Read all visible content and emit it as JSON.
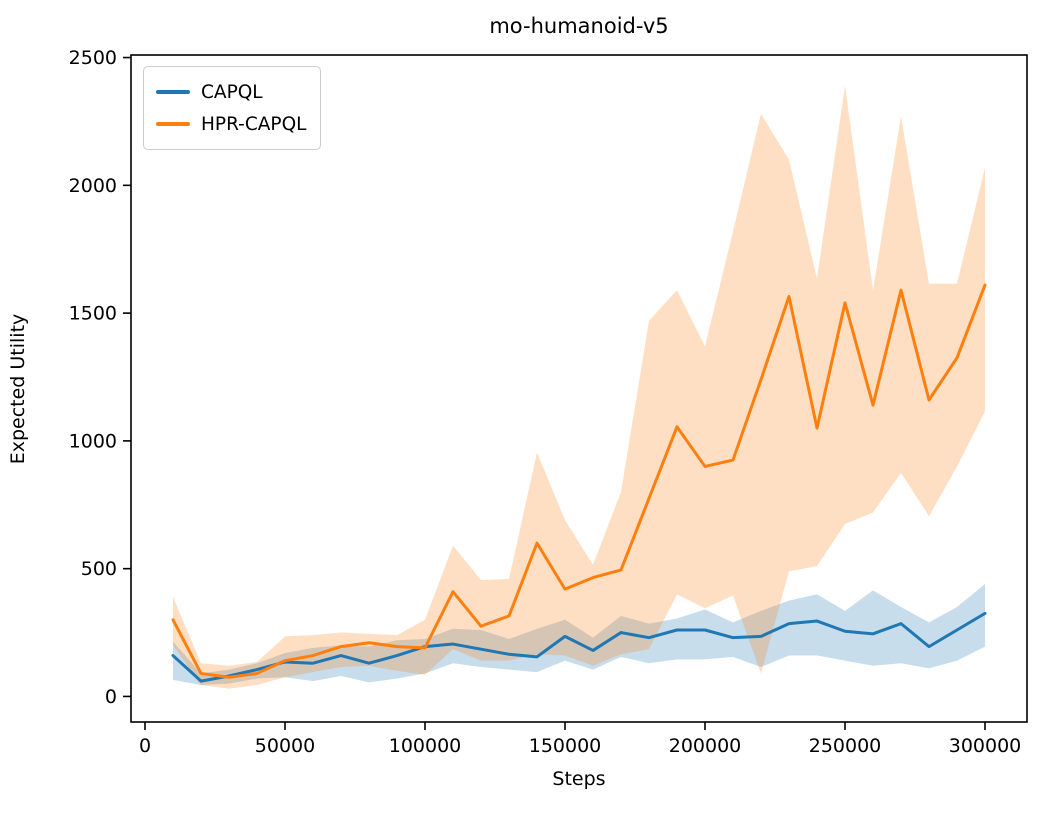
{
  "figure": {
    "title": "mo-humanoid-v5",
    "background_color": "#ffffff",
    "spine_color": "#000000"
  },
  "legend": {
    "position": "upper left",
    "entries": [
      {
        "label": "CAPQL",
        "color": "#1f77b4"
      },
      {
        "label": "HPR-CAPQL",
        "color": "#ff7f0e"
      }
    ]
  },
  "chart_data": {
    "type": "line",
    "title": "mo-humanoid-v5",
    "xlabel": "Steps",
    "ylabel": "Expected Utility",
    "grid": false,
    "legend_position": "upper left",
    "xlim": [
      -5000,
      315000
    ],
    "ylim": [
      -100,
      2510
    ],
    "xticks": [
      0,
      50000,
      100000,
      150000,
      200000,
      250000,
      300000
    ],
    "yticks": [
      0,
      500,
      1000,
      1500,
      2000,
      2500
    ],
    "band_opacity": 0.25,
    "x": [
      10000,
      20000,
      30000,
      40000,
      50000,
      60000,
      70000,
      80000,
      90000,
      100000,
      110000,
      120000,
      130000,
      140000,
      150000,
      160000,
      170000,
      180000,
      190000,
      200000,
      210000,
      220000,
      230000,
      240000,
      250000,
      260000,
      270000,
      280000,
      290000,
      300000
    ],
    "series": [
      {
        "name": "CAPQL",
        "color": "#1f77b4",
        "values": [
          160,
          60,
          80,
          105,
          135,
          130,
          160,
          130,
          160,
          195,
          205,
          185,
          165,
          155,
          235,
          180,
          250,
          230,
          260,
          260,
          230,
          235,
          285,
          295,
          255,
          245,
          285,
          195,
          260,
          325
        ],
        "band_lower": [
          65,
          45,
          50,
          70,
          75,
          60,
          80,
          55,
          70,
          90,
          130,
          115,
          105,
          95,
          140,
          105,
          155,
          130,
          145,
          145,
          155,
          115,
          160,
          160,
          140,
          120,
          130,
          110,
          140,
          195
        ],
        "band_upper": [
          215,
          90,
          105,
          130,
          170,
          190,
          200,
          195,
          220,
          225,
          265,
          260,
          225,
          265,
          300,
          230,
          315,
          285,
          305,
          340,
          290,
          335,
          375,
          400,
          335,
          415,
          350,
          290,
          350,
          440
        ]
      },
      {
        "name": "HPR-CAPQL",
        "color": "#ff7f0e",
        "values": [
          300,
          90,
          75,
          90,
          140,
          160,
          195,
          210,
          195,
          190,
          410,
          275,
          315,
          600,
          420,
          465,
          495,
          775,
          1055,
          900,
          925,
          1240,
          1565,
          1050,
          1540,
          1140,
          1590,
          1160,
          1325,
          1610
        ],
        "band_lower": [
          200,
          45,
          30,
          45,
          75,
          95,
          115,
          120,
          100,
          85,
          185,
          140,
          140,
          165,
          160,
          120,
          165,
          185,
          400,
          345,
          395,
          90,
          490,
          510,
          675,
          720,
          875,
          705,
          900,
          1115
        ],
        "band_upper": [
          390,
          130,
          120,
          135,
          235,
          240,
          250,
          245,
          240,
          300,
          590,
          455,
          460,
          955,
          690,
          515,
          800,
          1470,
          1590,
          1370,
          1820,
          2280,
          2100,
          1635,
          2390,
          1590,
          2270,
          1615,
          1615,
          2070
        ]
      }
    ]
  }
}
